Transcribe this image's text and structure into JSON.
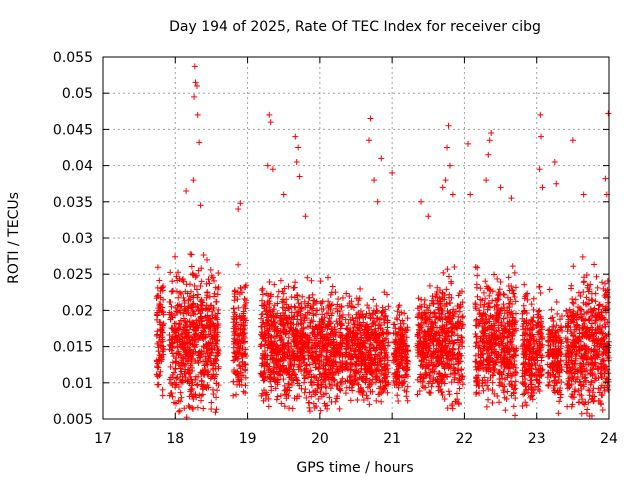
{
  "chart_data": {
    "type": "scatter",
    "title": "Day 194 of 2025, Rate Of TEC Index for receiver cibg",
    "xlabel": "GPS time / hours",
    "ylabel": "ROTI / TECUs",
    "xlim": [
      17,
      24
    ],
    "ylim": [
      0.005,
      0.055
    ],
    "x_ticks": [
      "17",
      "18",
      "19",
      "20",
      "21",
      "22",
      "23",
      "24"
    ],
    "y_ticks": [
      "0.005",
      "0.01",
      "0.015",
      "0.02",
      "0.025",
      "0.03",
      "0.035",
      "0.04",
      "0.045",
      "0.05",
      "0.055"
    ],
    "grid": true,
    "marker": "+",
    "color": "#ff0000",
    "points_description": "Dense band of ROTI values between about 0.007 and 0.027 TECUs from 17.75 to 24 h, with outliers up to about 0.054 near 18.3 h",
    "series": [
      {
        "name": "cibg",
        "segments": [
          {
            "x": [
              17.74,
              17.84
            ],
            "lo": 0.009,
            "hi": 0.029
          },
          {
            "x": [
              17.92,
              18.6
            ],
            "lo": 0.006,
            "hi": 0.03
          },
          {
            "x": [
              18.8,
              18.98
            ],
            "lo": 0.008,
            "hi": 0.028
          },
          {
            "x": [
              19.18,
              20.32
            ],
            "lo": 0.007,
            "hi": 0.027
          },
          {
            "x": [
              20.35,
              20.95
            ],
            "lo": 0.008,
            "hi": 0.025
          },
          {
            "x": [
              21.02,
              21.22
            ],
            "lo": 0.008,
            "hi": 0.024
          },
          {
            "x": [
              21.35,
              21.55
            ],
            "lo": 0.008,
            "hi": 0.026
          },
          {
            "x": [
              21.55,
              21.98
            ],
            "lo": 0.007,
            "hi": 0.028
          },
          {
            "x": [
              22.15,
              22.72
            ],
            "lo": 0.007,
            "hi": 0.028
          },
          {
            "x": [
              22.8,
              23.08
            ],
            "lo": 0.007,
            "hi": 0.026
          },
          {
            "x": [
              23.15,
              23.35
            ],
            "lo": 0.008,
            "hi": 0.024
          },
          {
            "x": [
              23.4,
              23.62
            ],
            "lo": 0.007,
            "hi": 0.027
          },
          {
            "x": [
              23.62,
              23.92
            ],
            "lo": 0.006,
            "hi": 0.029
          },
          {
            "x": [
              23.92,
              24.0
            ],
            "lo": 0.007,
            "hi": 0.03
          }
        ],
        "outliers": [
          {
            "x": 18.27,
            "y": 0.0537
          },
          {
            "x": 18.28,
            "y": 0.0515
          },
          {
            "x": 18.3,
            "y": 0.051
          },
          {
            "x": 18.26,
            "y": 0.0495
          },
          {
            "x": 18.31,
            "y": 0.047
          },
          {
            "x": 18.33,
            "y": 0.0432
          },
          {
            "x": 18.25,
            "y": 0.038
          },
          {
            "x": 18.15,
            "y": 0.0365
          },
          {
            "x": 18.35,
            "y": 0.0345
          },
          {
            "x": 18.9,
            "y": 0.0348
          },
          {
            "x": 18.87,
            "y": 0.034
          },
          {
            "x": 19.3,
            "y": 0.047
          },
          {
            "x": 19.32,
            "y": 0.046
          },
          {
            "x": 19.28,
            "y": 0.04
          },
          {
            "x": 19.35,
            "y": 0.0395
          },
          {
            "x": 19.5,
            "y": 0.036
          },
          {
            "x": 19.66,
            "y": 0.044
          },
          {
            "x": 19.7,
            "y": 0.0425
          },
          {
            "x": 19.68,
            "y": 0.0405
          },
          {
            "x": 19.72,
            "y": 0.0385
          },
          {
            "x": 19.8,
            "y": 0.033
          },
          {
            "x": 20.7,
            "y": 0.0465
          },
          {
            "x": 20.68,
            "y": 0.0435
          },
          {
            "x": 20.85,
            "y": 0.041
          },
          {
            "x": 20.75,
            "y": 0.038
          },
          {
            "x": 20.8,
            "y": 0.035
          },
          {
            "x": 21.0,
            "y": 0.039
          },
          {
            "x": 21.4,
            "y": 0.035
          },
          {
            "x": 21.5,
            "y": 0.033
          },
          {
            "x": 21.78,
            "y": 0.0455
          },
          {
            "x": 21.76,
            "y": 0.0425
          },
          {
            "x": 21.8,
            "y": 0.04
          },
          {
            "x": 21.74,
            "y": 0.038
          },
          {
            "x": 21.7,
            "y": 0.037
          },
          {
            "x": 21.84,
            "y": 0.036
          },
          {
            "x": 22.05,
            "y": 0.043
          },
          {
            "x": 22.08,
            "y": 0.036
          },
          {
            "x": 22.37,
            "y": 0.0445
          },
          {
            "x": 22.35,
            "y": 0.0435
          },
          {
            "x": 22.33,
            "y": 0.0415
          },
          {
            "x": 22.3,
            "y": 0.038
          },
          {
            "x": 22.5,
            "y": 0.037
          },
          {
            "x": 22.65,
            "y": 0.0355
          },
          {
            "x": 23.05,
            "y": 0.047
          },
          {
            "x": 23.06,
            "y": 0.044
          },
          {
            "x": 23.04,
            "y": 0.0395
          },
          {
            "x": 23.08,
            "y": 0.037
          },
          {
            "x": 23.25,
            "y": 0.0405
          },
          {
            "x": 23.27,
            "y": 0.0375
          },
          {
            "x": 23.5,
            "y": 0.0435
          },
          {
            "x": 23.65,
            "y": 0.036
          },
          {
            "x": 23.99,
            "y": 0.0472
          },
          {
            "x": 23.95,
            "y": 0.0382
          },
          {
            "x": 23.97,
            "y": 0.036
          },
          {
            "x": 22.7,
            "y": 0.0055
          },
          {
            "x": 18.05,
            "y": 0.006
          },
          {
            "x": 23.3,
            "y": 0.0058
          }
        ]
      }
    ]
  }
}
